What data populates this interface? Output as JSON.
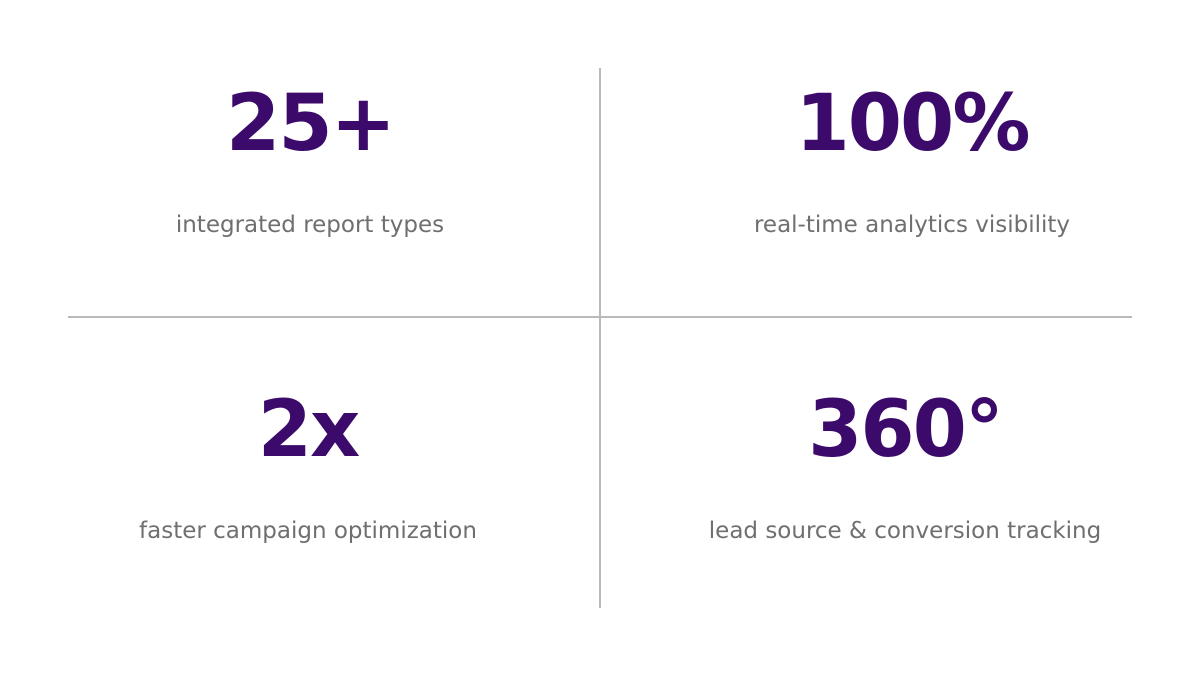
{
  "theme": {
    "value_color": "#3b0a6b",
    "label_color": "#6f6f6f",
    "divider_color": "#b9b9b9",
    "background": "#ffffff"
  },
  "stats": [
    {
      "value": "25+",
      "label": "integrated report types"
    },
    {
      "value": "100%",
      "label": "real-time analytics visibility"
    },
    {
      "value": "2x",
      "label": "faster campaign optimization"
    },
    {
      "value": "360°",
      "label": "lead source & conversion tracking"
    }
  ]
}
